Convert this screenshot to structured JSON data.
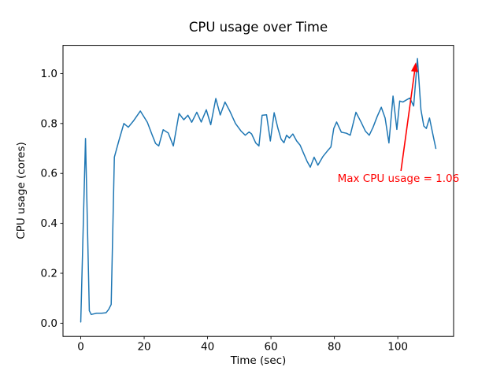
{
  "chart_data": {
    "type": "line",
    "title": "CPU usage over Time",
    "xlabel": "Time (sec)",
    "ylabel": "CPU usage (cores)",
    "xlim": [
      -5.6,
      117.6
    ],
    "ylim": [
      -0.053,
      1.113
    ],
    "xticks": [
      0,
      20,
      40,
      60,
      80,
      100
    ],
    "xtick_labels": [
      "0",
      "20",
      "40",
      "60",
      "80",
      "100"
    ],
    "yticks": [
      0.0,
      0.2,
      0.4,
      0.6,
      0.8,
      1.0
    ],
    "ytick_labels": [
      "0.0",
      "0.2",
      "0.4",
      "0.6",
      "0.8",
      "1.0"
    ],
    "grid": false,
    "legend": null,
    "line_color": "#1f77b4",
    "line_width": 1.5,
    "series_name": "CPU usage",
    "points": [
      [
        0,
        0.005
      ],
      [
        1.5,
        0.74
      ],
      [
        2.7,
        0.05
      ],
      [
        3.3,
        0.035
      ],
      [
        5,
        0.04
      ],
      [
        6.6,
        0.04
      ],
      [
        8,
        0.042
      ],
      [
        8.8,
        0.055
      ],
      [
        9.6,
        0.075
      ],
      [
        10.6,
        0.665
      ],
      [
        12,
        0.73
      ],
      [
        13.6,
        0.8
      ],
      [
        15,
        0.785
      ],
      [
        16.6,
        0.81
      ],
      [
        18.8,
        0.85
      ],
      [
        21,
        0.805
      ],
      [
        22.5,
        0.755
      ],
      [
        23.6,
        0.72
      ],
      [
        24.6,
        0.71
      ],
      [
        26,
        0.775
      ],
      [
        27.6,
        0.762
      ],
      [
        29.2,
        0.71
      ],
      [
        31,
        0.84
      ],
      [
        32.5,
        0.815
      ],
      [
        33.8,
        0.833
      ],
      [
        35,
        0.805
      ],
      [
        36.6,
        0.845
      ],
      [
        38,
        0.806
      ],
      [
        39.6,
        0.855
      ],
      [
        41,
        0.795
      ],
      [
        42.6,
        0.9
      ],
      [
        44,
        0.834
      ],
      [
        45.5,
        0.886
      ],
      [
        47,
        0.85
      ],
      [
        48.8,
        0.8
      ],
      [
        50.6,
        0.769
      ],
      [
        51.9,
        0.753
      ],
      [
        53.1,
        0.766
      ],
      [
        53.9,
        0.758
      ],
      [
        55.2,
        0.722
      ],
      [
        56.2,
        0.71
      ],
      [
        57.2,
        0.833
      ],
      [
        58.6,
        0.835
      ],
      [
        59.8,
        0.73
      ],
      [
        61,
        0.843
      ],
      [
        62.2,
        0.78
      ],
      [
        63.2,
        0.737
      ],
      [
        64.1,
        0.723
      ],
      [
        64.9,
        0.753
      ],
      [
        65.8,
        0.742
      ],
      [
        66.9,
        0.758
      ],
      [
        68.1,
        0.73
      ],
      [
        69.2,
        0.713
      ],
      [
        70.3,
        0.68
      ],
      [
        71.4,
        0.648
      ],
      [
        72.4,
        0.625
      ],
      [
        73.6,
        0.665
      ],
      [
        74.8,
        0.633
      ],
      [
        76.4,
        0.668
      ],
      [
        77.8,
        0.69
      ],
      [
        78.9,
        0.706
      ],
      [
        79.8,
        0.78
      ],
      [
        80.7,
        0.806
      ],
      [
        82.2,
        0.765
      ],
      [
        83.8,
        0.761
      ],
      [
        85,
        0.753
      ],
      [
        86.8,
        0.845
      ],
      [
        88.4,
        0.806
      ],
      [
        89.8,
        0.769
      ],
      [
        91,
        0.753
      ],
      [
        92.2,
        0.785
      ],
      [
        93.5,
        0.828
      ],
      [
        94.8,
        0.865
      ],
      [
        96,
        0.822
      ],
      [
        97.2,
        0.722
      ],
      [
        98.5,
        0.91
      ],
      [
        99.7,
        0.776
      ],
      [
        100.6,
        0.89
      ],
      [
        101.6,
        0.886
      ],
      [
        102.8,
        0.895
      ],
      [
        103.8,
        0.902
      ],
      [
        105,
        0.87
      ],
      [
        106.2,
        1.06
      ],
      [
        107.3,
        0.855
      ],
      [
        108.2,
        0.79
      ],
      [
        109,
        0.78
      ],
      [
        110,
        0.822
      ],
      [
        111.2,
        0.748
      ],
      [
        112,
        0.7
      ]
    ],
    "max_point": {
      "t": 106.2,
      "value": 1.06
    },
    "annotation": {
      "text": "Max CPU usage = 1.06",
      "color": "#ff0000",
      "text_xy": [
        81.0,
        0.56
      ],
      "arrow_from": [
        101.0,
        0.61
      ],
      "arrow_to": [
        105.7,
        1.045
      ]
    }
  }
}
